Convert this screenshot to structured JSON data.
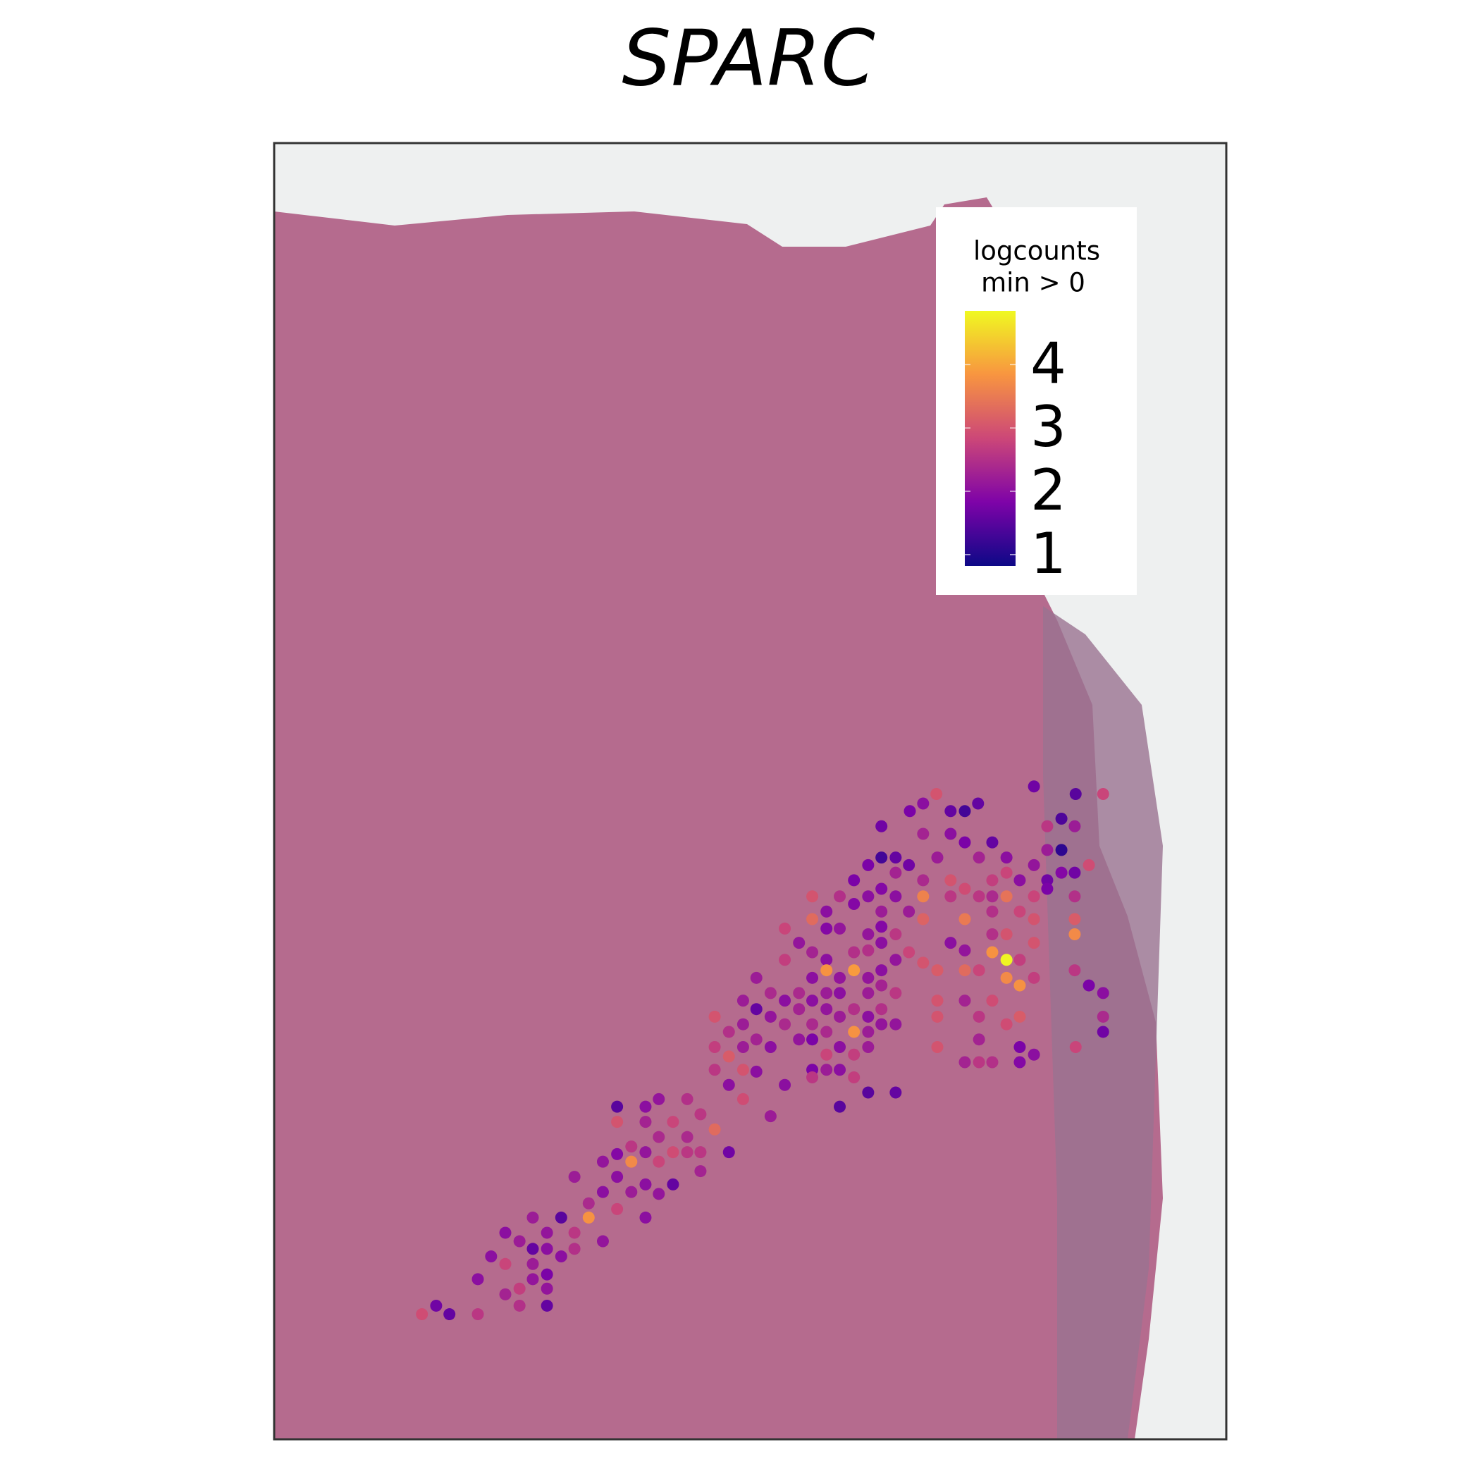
{
  "chart_data": {
    "type": "scatter",
    "title": "SPARC",
    "legend_title": [
      "logcounts",
      "min > 0"
    ],
    "colormap": "plasma",
    "clim": [
      0.82,
      4.85
    ],
    "cticks": [
      1,
      2,
      3,
      4
    ],
    "legend_position": "upper right",
    "xlim": [
      289,
      1294
    ],
    "ylim": [
      1519,
      151
    ],
    "x": [
      988,
      960,
      974,
      1003,
      1018,
      1032,
      1091,
      1135,
      1164,
      930,
      974,
      1003,
      1018,
      1047,
      1105,
      1120,
      1134,
      945,
      930,
      959,
      916,
      989,
      1033,
      1062,
      1091,
      1105,
      1120,
      1149,
      945,
      901,
      930,
      974,
      1003,
      1047,
      1062,
      1076,
      1105,
      1120,
      1134,
      857,
      886,
      916,
      945,
      974,
      1003,
      1018,
      1033,
      1047,
      1062,
      1091,
      1105,
      1134,
      872,
      901,
      930,
      959,
      974,
      1018,
      1047,
      1076,
      1091,
      1134,
      857,
      828,
      843,
      872,
      886,
      916,
      930,
      945,
      1003,
      1047,
      1062,
      1091,
      1134,
      828,
      857,
      872,
      901,
      916,
      930,
      959,
      1018,
      1047,
      1062,
      1076,
      872,
      901,
      945,
      974,
      989,
      1018,
      1033,
      1062,
      1076,
      1091,
      1134,
      857,
      886,
      916,
      930,
      798,
      813,
      843,
      872,
      886,
      916,
      930,
      945,
      989,
      1018,
      1047,
      1149,
      1164,
      784,
      828,
      857,
      901,
      930,
      798,
      813,
      843,
      872,
      886,
      916,
      754,
      784,
      828,
      857,
      930,
      945,
      989,
      1033,
      1062,
      1164,
      1076,
      769,
      798,
      843,
      872,
      901,
      916,
      1164,
      754,
      784,
      813,
      857,
      886,
      916,
      989,
      1033,
      1076,
      1135,
      769,
      872,
      901,
      1018,
      1033,
      1047,
      1091,
      754,
      784,
      798,
      857,
      872,
      886,
      1076,
      828,
      857,
      901,
      769,
      784,
      916,
      945,
      886,
      813,
      651,
      681,
      695,
      725,
      651,
      681,
      710,
      739,
      695,
      725,
      754,
      666,
      681,
      710,
      725,
      651,
      739,
      769,
      636,
      666,
      695,
      739,
      651,
      681,
      710,
      606,
      636,
      666,
      695,
      621,
      651,
      621,
      592,
      562,
      577,
      606,
      636,
      681,
      533,
      548,
      562,
      577,
      606,
      592,
      518,
      533,
      562,
      577,
      504,
      548,
      562,
      577,
      533,
      504,
      548,
      577,
      460,
      474,
      445
    ],
    "y": [
      838,
      856,
      848,
      856,
      856,
      848,
      830,
      838,
      838,
      872,
      880,
      880,
      889,
      889,
      872,
      864,
      872,
      905,
      905,
      913,
      913,
      905,
      905,
      905,
      913,
      897,
      897,
      913,
      921,
      929,
      938,
      929,
      929,
      929,
      921,
      929,
      929,
      921,
      921,
      946,
      946,
      946,
      946,
      946,
      946,
      938,
      946,
      946,
      946,
      946,
      938,
      946,
      962,
      954,
      962,
      962,
      970,
      970,
      962,
      962,
      970,
      970,
      970,
      980,
      995,
      980,
      980,
      986,
      978,
      986,
      995,
      986,
      986,
      995,
      986,
      1013,
      1005,
      1013,
      1005,
      1003,
      995,
      1005,
      1003,
      1005,
      1013,
      1013,
      1024,
      1024,
      1013,
      1016,
      1024,
      1024,
      1024,
      1032,
      1040,
      1032,
      1024,
      1032,
      1032,
      1032,
      1024,
      1032,
      1048,
      1048,
      1048,
      1048,
      1048,
      1040,
      1048,
      1056,
      1056,
      1056,
      1040,
      1048,
      1056,
      1056,
      1056,
      1065,
      1065,
      1065,
      1073,
      1065,
      1065,
      1073,
      1073,
      1073,
      1081,
      1081,
      1081,
      1081,
      1081,
      1073,
      1073,
      1081,
      1073,
      1073,
      1089,
      1097,
      1097,
      1089,
      1089,
      1089,
      1089,
      1105,
      1105,
      1105,
      1097,
      1105,
      1105,
      1105,
      1097,
      1105,
      1105,
      1115,
      1113,
      1113,
      1121,
      1121,
      1121,
      1113,
      1129,
      1129,
      1131,
      1129,
      1129,
      1129,
      1121,
      1145,
      1137,
      1137,
      1145,
      1160,
      1153,
      1153,
      1168,
      1178,
      1168,
      1168,
      1160,
      1160,
      1184,
      1184,
      1184,
      1176,
      1200,
      1200,
      1192,
      1210,
      1216,
      1216,
      1216,
      1218,
      1216,
      1216,
      1226,
      1226,
      1226,
      1236,
      1242,
      1250,
      1250,
      1242,
      1258,
      1258,
      1260,
      1270,
      1276,
      1285,
      1285,
      1285,
      1301,
      1301,
      1310,
      1285,
      1301,
      1310,
      1318,
      1318,
      1318,
      1326,
      1326,
      1334,
      1334,
      1345,
      1350,
      1360,
      1350,
      1360,
      1366,
      1387,
      1378,
      1378,
      1378,
      1387,
      1387
    ],
    "values": [
      3.0,
      1.8,
      2.0,
      1.6,
      1.3,
      1.6,
      1.7,
      1.5,
      2.8,
      1.7,
      2.3,
      2.0,
      1.8,
      1.6,
      2.6,
      1.4,
      2.2,
      1.6,
      1.3,
      1.7,
      1.8,
      2.2,
      2.3,
      2.0,
      2.1,
      2.2,
      1.1,
      2.9,
      2.3,
      1.8,
      1.9,
      2.4,
      3.0,
      2.7,
      2.8,
      2.0,
      1.7,
      1.9,
      1.7,
      3.0,
      2.5,
      2.0,
      2.0,
      3.6,
      2.6,
      2.9,
      2.6,
      2.4,
      3.4,
      2.8,
      1.8,
      2.5,
      2.0,
      1.9,
      2.2,
      2.2,
      3.2,
      3.5,
      2.5,
      2.8,
      3.0,
      3.1,
      3.3,
      2.8,
      2.1,
      1.9,
      2.1,
      2.1,
      1.9,
      2.6,
      2.0,
      2.5,
      3.0,
      3.0,
      3.7,
      2.7,
      2.3,
      2.0,
      2.5,
      2.5,
      2.0,
      2.8,
      2.1,
      3.8,
      4.8,
      2.7,
      3.8,
      3.9,
      2.1,
      3.0,
      3.1,
      3.3,
      2.8,
      3.7,
      3.8,
      2.7,
      2.6,
      2.0,
      2.1,
      2.1,
      2.0,
      2.2,
      2.4,
      2.4,
      2.2,
      2.0,
      2.2,
      2.3,
      2.6,
      3.0,
      2.3,
      2.9,
      1.8,
      2.0,
      2.2,
      2.0,
      2.0,
      2.5,
      2.5,
      1.6,
      2.1,
      2.3,
      2.1,
      2.2,
      2.0,
      3.0,
      2.2,
      2.4,
      2.4,
      2.1,
      2.1,
      3.0,
      2.6,
      2.9,
      2.4,
      3.1,
      2.5,
      2.3,
      2.1,
      2.4,
      3.8,
      2.2,
      1.7,
      2.7,
      2.2,
      2.0,
      1.8,
      2.0,
      2.2,
      3.0,
      2.3,
      1.8,
      2.8,
      3.1,
      2.8,
      2.7,
      2.3,
      2.6,
      2.5,
      2.0,
      2.6,
      3.0,
      2.0,
      1.8,
      2.2,
      2.0,
      1.9,
      2.0,
      2.6,
      2.7,
      2.0,
      2.9,
      1.5,
      1.6,
      1.5,
      2.2,
      1.5,
      2.0,
      2.1,
      2.5,
      3.0,
      2.3,
      2.8,
      2.6,
      2.4,
      2.4,
      3.3,
      2.6,
      2.1,
      2.9,
      2.6,
      1.9,
      2.6,
      1.7,
      2.1,
      3.7,
      2.8,
      2.3,
      2.0,
      2.0,
      1.6,
      2.2,
      2.0,
      2.2,
      2.1,
      2.4,
      2.8,
      3.8,
      1.5,
      2.2,
      2.1,
      2.6,
      2.1,
      2.0,
      2.0,
      2.2,
      1.6,
      2.0,
      2.5,
      2.0,
      2.0,
      2.8,
      2.2,
      1.8,
      2.0,
      2.7,
      2.1,
      2.1,
      2.3,
      2.6,
      2.5,
      1.6,
      1.7,
      1.6,
      2.9
    ]
  }
}
